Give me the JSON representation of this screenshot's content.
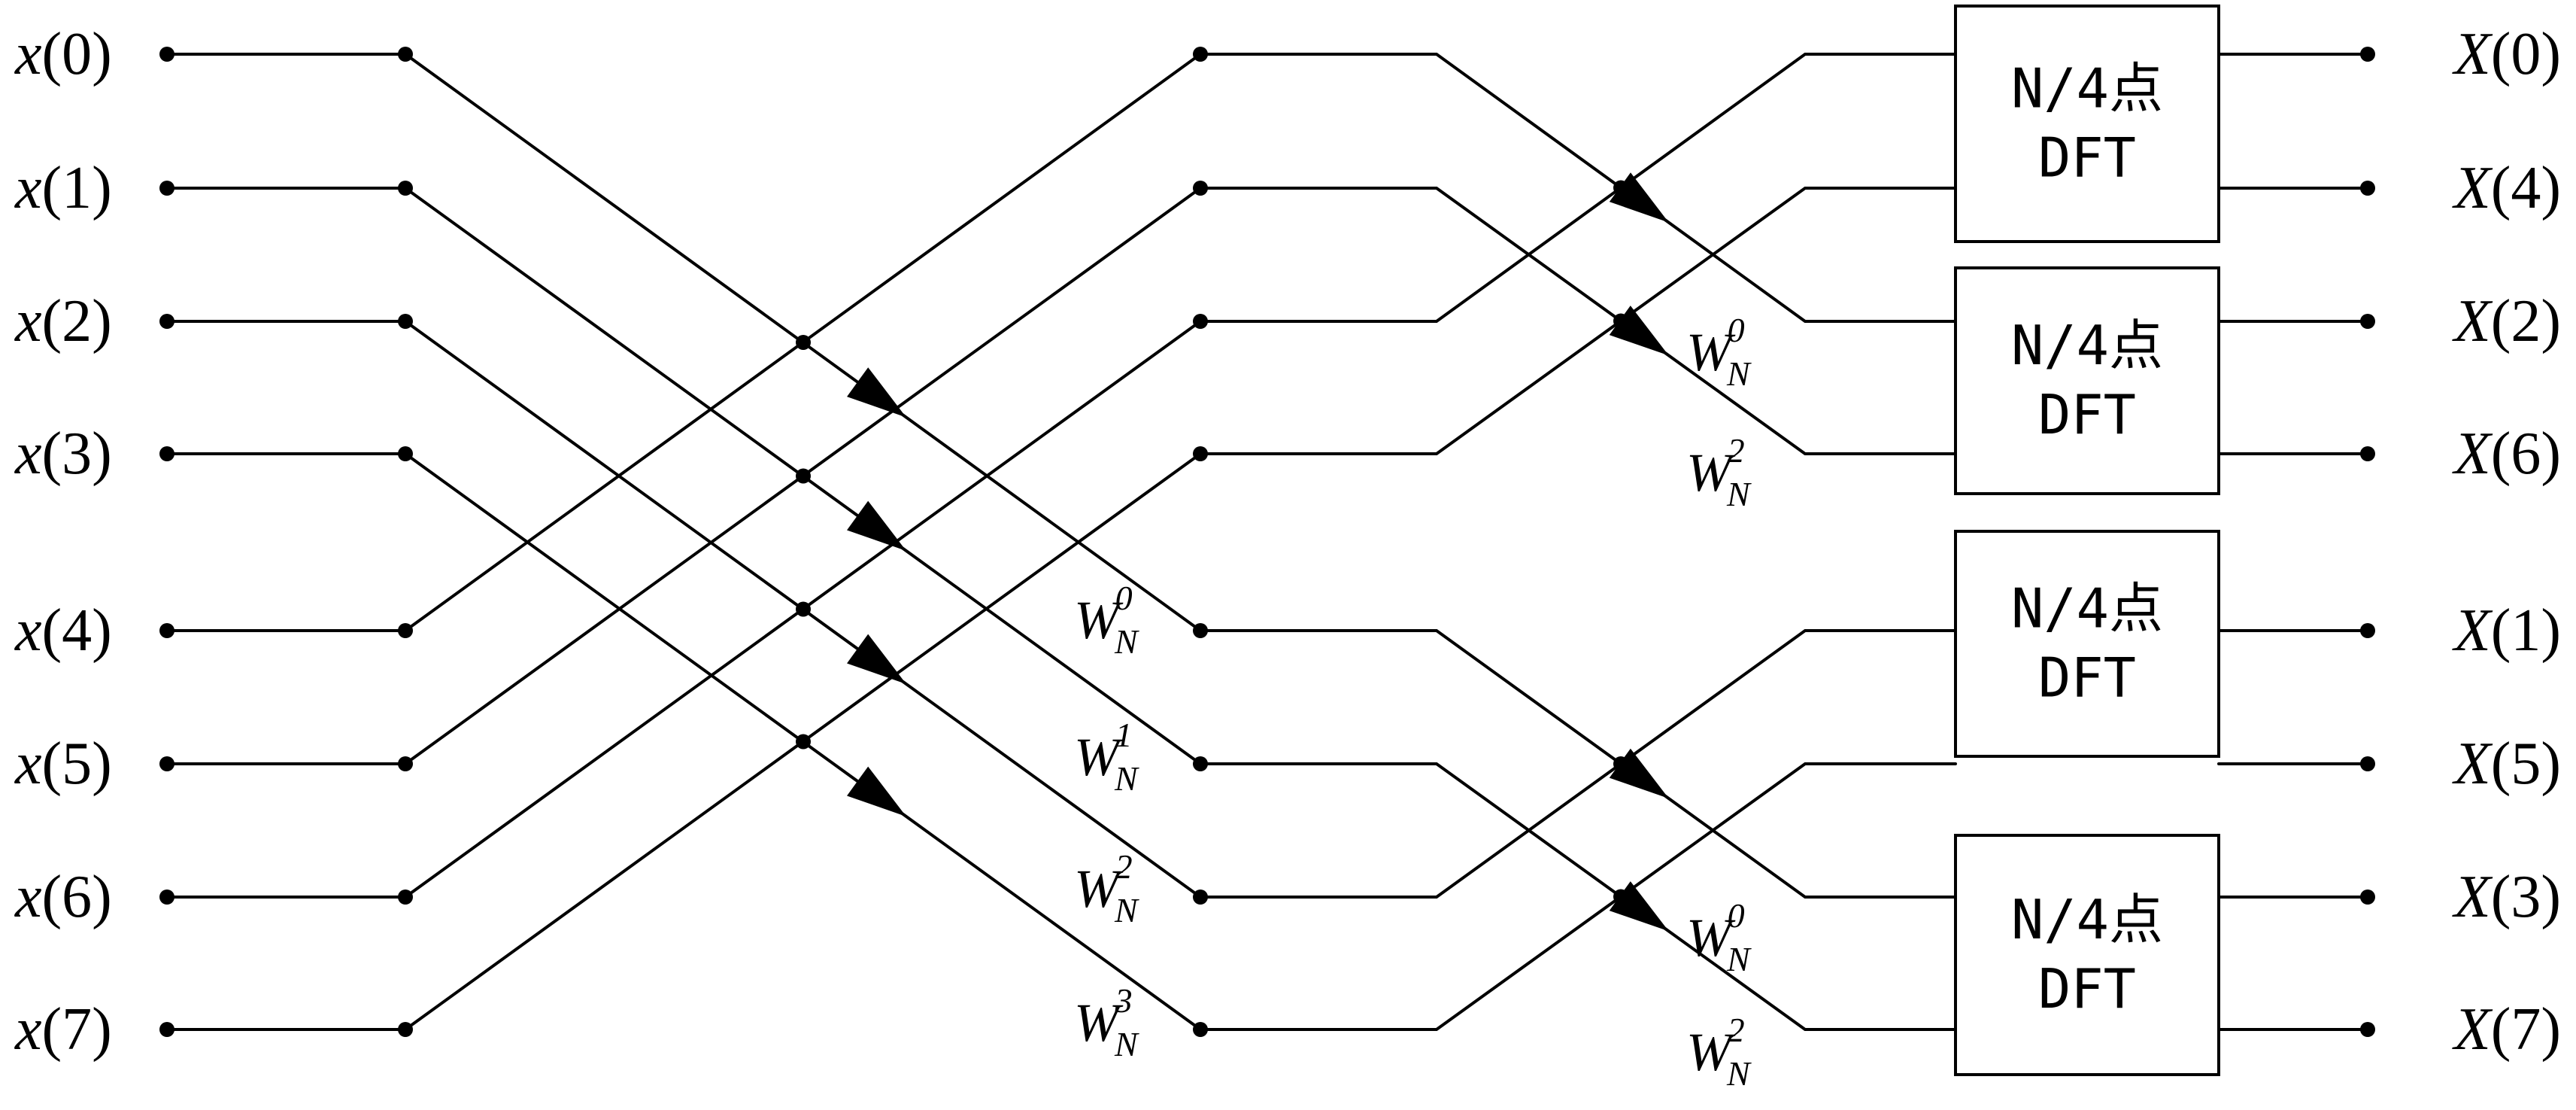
{
  "inputs": [
    "x(0)",
    "x(1)",
    "x(2)",
    "x(3)",
    "x(4)",
    "x(5)",
    "x(6)",
    "x(7)"
  ],
  "outputs": [
    "X(0)",
    "X(4)",
    "X(2)",
    "X(6)",
    "X(1)",
    "X(5)",
    "X(3)",
    "X(7)"
  ],
  "stage1_twiddles": [
    {
      "base": "W",
      "sub": "N",
      "sup": "0"
    },
    {
      "base": "W",
      "sub": "N",
      "sup": "1"
    },
    {
      "base": "W",
      "sub": "N",
      "sup": "2"
    },
    {
      "base": "W",
      "sub": "N",
      "sup": "3"
    }
  ],
  "stage2_twiddles": [
    {
      "base": "W",
      "sub": "N",
      "sup": "0"
    },
    {
      "base": "W",
      "sub": "N",
      "sup": "2"
    },
    {
      "base": "W",
      "sub": "N",
      "sup": "0"
    },
    {
      "base": "W",
      "sub": "N",
      "sup": "2"
    }
  ],
  "dft_blocks": [
    {
      "line1": "N/4点",
      "line2": "DFT"
    },
    {
      "line1": "N/4点",
      "line2": "DFT"
    },
    {
      "line1": "N/4点",
      "line2": "DFT"
    },
    {
      "line1": "N/4点",
      "line2": "DFT"
    }
  ]
}
